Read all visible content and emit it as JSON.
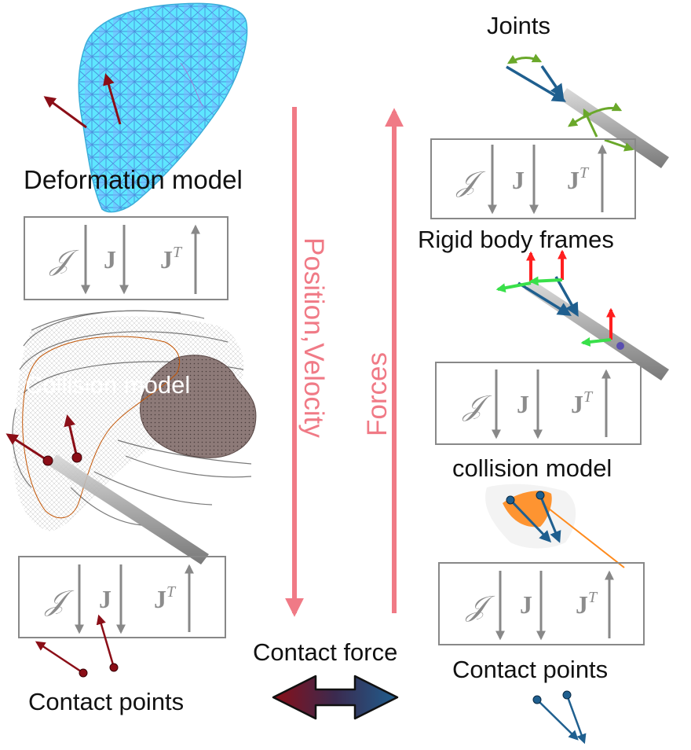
{
  "colors": {
    "flow_arrow": "#f07a86",
    "mapping_gray": "#8c8c8c",
    "contact_dark_red": "#8b0e17",
    "contact_blue": "#1f5f8f",
    "mesh_cyan": "#5ee6ff",
    "organ_orange": "#ff8a1c",
    "frame_x_red": "#ff1f1f",
    "frame_y_green": "#39e04a",
    "joint_green": "#6aa82a"
  },
  "left": {
    "deformation_label": "Deformation model",
    "collision_label": "Collision model",
    "contact_label": "Contact points"
  },
  "center": {
    "position_velocity_label": "Position,Velocity",
    "forces_label": "Forces",
    "contact_force_label": "Contact force"
  },
  "right": {
    "joints_label": "Joints",
    "rigid_frames_label": "Rigid body frames",
    "collision_label": "collision model",
    "contact_label": "Contact points"
  },
  "mapping": {
    "script_j": "𝒥",
    "bold_j": "J",
    "jt_base": "J",
    "jt_sup": "T"
  },
  "icons": [
    "liver-mesh-icon",
    "anatomy-icon",
    "instrument-icon",
    "frame-axes-icon",
    "double-arrow-icon"
  ]
}
